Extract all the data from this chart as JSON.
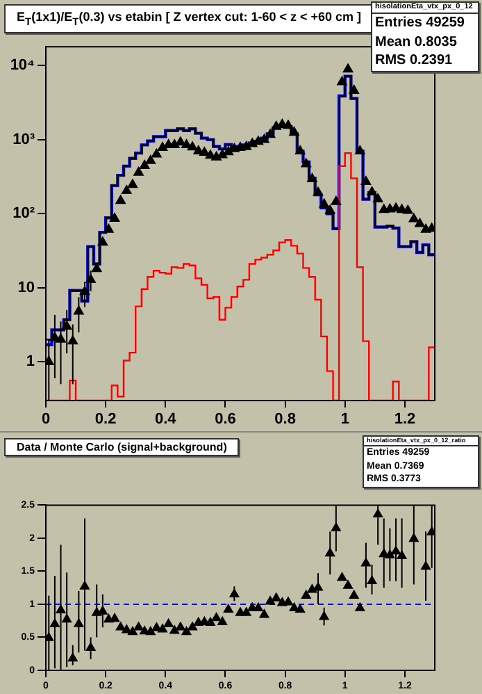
{
  "chart_data": [
    {
      "type": "histogram",
      "title": "E$_{T}$(1x1)/E$_{T}$(0.3) vs etabin [ Z vertex cut: 1-60 < z < +60 cm ]",
      "annotations": [
        "hisolationEta_vtx_px_0_12",
        "Entries 49259",
        "Mean 0.8035",
        "RMS 0.2391"
      ],
      "bins": [
        0,
        0.02,
        0.04,
        0.06,
        0.08,
        0.1,
        0.12,
        0.14,
        0.16,
        0.18,
        0.2,
        0.22,
        0.24,
        0.26,
        0.28,
        0.3,
        0.32,
        0.34,
        0.36,
        0.38,
        0.4,
        0.42,
        0.44,
        0.46,
        0.48,
        0.5,
        0.52,
        0.54,
        0.56,
        0.58,
        0.6,
        0.62,
        0.64,
        0.66,
        0.68,
        0.7,
        0.72,
        0.74,
        0.76,
        0.78,
        0.8,
        0.82,
        0.84,
        0.86,
        0.88,
        0.9,
        0.92,
        0.94,
        0.96,
        0.98,
        1,
        1.02,
        1.04,
        1.06,
        1.08,
        1.1,
        1.12,
        1.14,
        1.16,
        1.18,
        1.2,
        1.22,
        1.24,
        1.26,
        1.28,
        1.3
      ],
      "series": [
        {
          "type": "histogram",
          "color": "#0000ff",
          "values": [
            1.7,
            2.7,
            2.7,
            3.7,
            9.2,
            9.2,
            6.6,
            36,
            21,
            56,
            88,
            240,
            330,
            440,
            560,
            660,
            850,
            960,
            1100,
            1100,
            1330,
            1330,
            1400,
            1330,
            1400,
            1220,
            1050,
            1000,
            810,
            750,
            860,
            750,
            810,
            850,
            900,
            950,
            1050,
            1200,
            1450,
            1500,
            1500,
            1200,
            700,
            500,
            300,
            180,
            120,
            100,
            63,
            3900,
            7200,
            3600,
            700,
            157,
            193,
            66,
            66,
            68,
            64,
            36,
            36,
            42,
            30,
            38,
            28
          ]
        },
        {
          "type": "histogram",
          "color": "#000000",
          "values": [
            2,
            2.7,
            2.7,
            3.7,
            9.2,
            9.2,
            6.6,
            36,
            21,
            56,
            88,
            240,
            330,
            440,
            560,
            660,
            850,
            960,
            1100,
            1100,
            1330,
            1330,
            1400,
            1330,
            1400,
            1220,
            1050,
            1000,
            810,
            750,
            860,
            750,
            810,
            850,
            900,
            950,
            1050,
            1200,
            1450,
            1500,
            1500,
            1200,
            700,
            500,
            300,
            180,
            120,
            100,
            63,
            3900,
            7200,
            3600,
            700,
            157,
            193,
            66,
            66,
            68,
            64,
            36,
            36,
            42,
            30,
            38,
            28
          ]
        },
        {
          "type": "histogram",
          "color": "#ff0000",
          "values": [
            null,
            null,
            null,
            null,
            0.56,
            null,
            null,
            null,
            null,
            null,
            null,
            0.48,
            0.34,
            1.04,
            1.33,
            5.6,
            9.6,
            14,
            17,
            16,
            15.5,
            19,
            18.5,
            21,
            20,
            13.4,
            11,
            7.2,
            7.5,
            3.7,
            5.4,
            7.5,
            10.4,
            12.8,
            21,
            24,
            25.5,
            28,
            32,
            41,
            44,
            37,
            29,
            18.5,
            14,
            6.9,
            2.2,
            0.75,
            null,
            440,
            660,
            300,
            19,
            1.9,
            null,
            null,
            null,
            null,
            0.54,
            null,
            null,
            null,
            null,
            null,
            1.57
          ]
        },
        {
          "type": "scatter",
          "color": "#000000",
          "x": [
            0.01,
            0.03,
            0.05,
            0.07,
            0.09,
            0.11,
            0.13,
            0.15,
            0.17,
            0.19,
            0.21,
            0.23,
            0.25,
            0.27,
            0.29,
            0.31,
            0.33,
            0.35,
            0.37,
            0.39,
            0.41,
            0.43,
            0.45,
            0.47,
            0.49,
            0.51,
            0.53,
            0.55,
            0.57,
            0.59,
            0.61,
            0.63,
            0.65,
            0.67,
            0.69,
            0.71,
            0.73,
            0.75,
            0.77,
            0.79,
            0.81,
            0.83,
            0.85,
            0.87,
            0.89,
            0.91,
            0.93,
            0.95,
            0.97,
            0.99,
            1.01,
            1.03,
            1.05,
            1.07,
            1.09,
            1.11,
            1.13,
            1.15,
            1.17,
            1.19,
            1.21,
            1.23,
            1.25,
            1.27,
            1.29
          ],
          "values": [
            1,
            2.1,
            2,
            3,
            1.9,
            4.8,
            8.8,
            12.8,
            18,
            41,
            61,
            86,
            150,
            204,
            246,
            360,
            445,
            520,
            635,
            780,
            850,
            850,
            920,
            850,
            790,
            700,
            670,
            610,
            580,
            620,
            680,
            750,
            780,
            800,
            880,
            940,
            1000,
            1170,
            1500,
            1600,
            1550,
            1250,
            700,
            470,
            295,
            193,
            134,
            110,
            145,
            6000,
            8900,
            4600,
            700,
            270,
            195,
            157,
            113,
            115,
            118,
            113,
            110,
            85,
            73,
            61,
            63
          ],
          "errors": [
            [
              0.3,
              2
            ],
            [
              0.6,
              4.3
            ],
            [
              0.5,
              3.5
            ],
            [
              1.3,
              5
            ],
            [
              0.5,
              3.2
            ],
            [
              2.5,
              7.5
            ],
            [
              5.5,
              12
            ],
            [
              9,
              17
            ],
            null,
            null,
            null,
            null,
            null,
            null,
            null,
            null,
            null,
            null,
            null,
            null,
            null,
            null,
            null,
            null,
            null,
            null,
            null,
            null,
            null,
            null,
            null,
            null,
            null,
            null,
            null,
            null,
            null,
            null,
            null,
            null,
            null,
            null,
            null,
            null,
            null,
            null,
            null,
            null,
            null,
            null,
            null,
            null,
            null,
            null,
            null,
            null,
            null,
            null,
            null,
            null,
            null,
            null,
            null,
            null,
            null
          ]
        }
      ],
      "marker": "triangle",
      "log": "y",
      "xlim": [
        0,
        1.3
      ],
      "xticks": [
        0,
        0.2,
        0.4,
        0.6,
        0.8,
        1,
        1.2
      ],
      "ylim": [
        0.3,
        18000
      ],
      "yticks": [
        {
          "value": 1,
          "label": "1"
        },
        {
          "value": 10,
          "label": "10"
        },
        {
          "value": 100,
          "label": "10²"
        },
        {
          "value": 1000,
          "label": "10³"
        },
        {
          "value": 10000,
          "label": "10⁴"
        }
      ]
    },
    {
      "type": "scatter",
      "title": "Data / Monte Carlo (signal+background)",
      "annotations": [
        "hisolationEta_vtx_px_0_12_ratio",
        "Entries 49259",
        "Mean 0.7369",
        "RMS 0.3773"
      ],
      "x": [
        0.01,
        0.03,
        0.05,
        0.07,
        0.09,
        0.11,
        0.13,
        0.15,
        0.17,
        0.19,
        0.21,
        0.23,
        0.25,
        0.27,
        0.29,
        0.31,
        0.33,
        0.35,
        0.37,
        0.39,
        0.41,
        0.43,
        0.45,
        0.47,
        0.49,
        0.51,
        0.53,
        0.55,
        0.57,
        0.59,
        0.61,
        0.63,
        0.65,
        0.67,
        0.69,
        0.71,
        0.73,
        0.75,
        0.77,
        0.79,
        0.81,
        0.83,
        0.85,
        0.87,
        0.89,
        0.91,
        0.93,
        0.95,
        0.97,
        0.99,
        1.01,
        1.03,
        1.05,
        1.07,
        1.09,
        1.11,
        1.13,
        1.15,
        1.17,
        1.19,
        1.21,
        1.23,
        1.25,
        1.27,
        1.29
      ],
      "values": [
        0.49,
        0.7,
        0.91,
        0.77,
        0.18,
        0.7,
        1.27,
        0.34,
        0.87,
        0.89,
        0.77,
        0.78,
        0.65,
        0.61,
        0.58,
        0.65,
        0.59,
        0.58,
        0.64,
        0.62,
        0.7,
        0.6,
        0.65,
        0.58,
        0.65,
        0.72,
        0.73,
        0.72,
        0.79,
        0.73,
        0.92,
        1.15,
        0.87,
        0.87,
        0.94,
        0.94,
        0.84,
        1.04,
        1.09,
        1.02,
        1.03,
        0.94,
        0.92,
        1.13,
        1.22,
        1.25,
        0.81,
        1.77,
        2.15,
        1.4,
        1.28,
        1.13,
        0.94,
        1.62,
        1.35,
        2.36,
        1.76,
        1.74,
        1.8,
        1.73,
        null,
        1.99,
        null,
        1.57,
        2.09
      ],
      "errors": [
        [
          0,
          1.13
        ],
        [
          0.03,
          1.43
        ],
        [
          0,
          1.9
        ],
        [
          0.05,
          1.48
        ],
        [
          0.08,
          0.38
        ],
        [
          0.27,
          1.2
        ],
        [
          0.3,
          2.3
        ],
        [
          0.17,
          0.5
        ],
        [
          0.5,
          1.3
        ],
        [
          0.65,
          1.15
        ],
        null,
        null,
        null,
        null,
        null,
        null,
        null,
        null,
        null,
        null,
        null,
        null,
        null,
        null,
        null,
        null,
        null,
        null,
        null,
        null,
        null,
        [
          1.05,
          1.27
        ],
        null,
        null,
        null,
        null,
        null,
        null,
        null,
        null,
        null,
        null,
        null,
        null,
        null,
        [
          1,
          1.47
        ],
        [
          0.68,
          0.95
        ],
        [
          1.45,
          2.1
        ],
        [
          1.8,
          2.5
        ],
        null,
        null,
        null,
        null,
        [
          1.25,
          1.93
        ],
        [
          1.15,
          1.6
        ],
        [
          1.9,
          2.5
        ],
        [
          1.25,
          2.3
        ],
        [
          1.35,
          2.15
        ],
        [
          1.35,
          2.3
        ],
        [
          1.25,
          2.3
        ],
        null,
        [
          1.3,
          2.5
        ],
        null,
        [
          1.05,
          2.1
        ],
        [
          1.55,
          2.5
        ]
      ],
      "color": "#000000",
      "marker": "triangle",
      "xlim": [
        0,
        1.3
      ],
      "xticks": [
        0,
        0.2,
        0.4,
        0.6,
        0.8,
        1,
        1.2
      ],
      "ylim": [
        0,
        2.5
      ],
      "yticks": [
        0,
        0.5,
        1,
        1.5,
        2,
        2.5
      ],
      "ref_lines": [
        {
          "axis": "y",
          "value": 1,
          "color": "#0000ff",
          "line_style": "dashed"
        }
      ]
    }
  ]
}
